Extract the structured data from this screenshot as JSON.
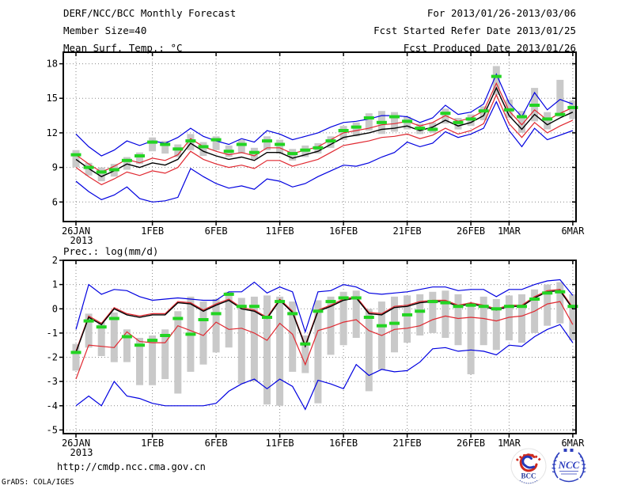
{
  "header": {
    "left": [
      "DERF/NCC/BCC Monthly Forecast",
      "Member Size=40"
    ],
    "right": [
      "For 2013/01/26-2013/03/06",
      "Fcst Started Refer Date 2013/01/25",
      "Fcst Produced Date 2013/01/26"
    ]
  },
  "footer": {
    "url": "http://cmdp.ncc.cma.gov.cn",
    "credit": "GrADS: COLA/IGES",
    "logos": [
      {
        "label": "BCC"
      },
      {
        "label": "NCC"
      }
    ]
  },
  "colors": {
    "line_blue": "#0000e0",
    "line_red": "#e02830",
    "line_black": "#000000",
    "marker_green": "#22d422",
    "bar_gray": "#c9c9c9",
    "grid": "#8a8a8a"
  },
  "chart_data": [
    {
      "type": "line",
      "name": "temp-forecast-panel",
      "title": "Mean Surf. Temp.: °C",
      "x_start": "26JAN2013",
      "x_tick_days": [
        0,
        6,
        11,
        16,
        21,
        26,
        31,
        34,
        39
      ],
      "x_tick_labels": [
        "26JAN",
        "1FEB",
        "6FEB",
        "11FEB",
        "16FEB",
        "21FEB",
        "26FEB",
        "1MAR",
        "6MAR"
      ],
      "year_label": "2013",
      "ylim": [
        4.3,
        19.0
      ],
      "yticks": [
        6,
        9,
        12,
        15,
        18
      ],
      "grid": "dotted",
      "series": [
        {
          "name": "ensemble-max",
          "color": "#0000e0",
          "width": 1.2,
          "values": [
            11.9,
            10.8,
            10.0,
            10.5,
            11.3,
            10.9,
            11.3,
            11.1,
            11.6,
            12.4,
            11.7,
            11.3,
            11.0,
            11.5,
            11.2,
            12.2,
            11.9,
            11.4,
            11.7,
            12.0,
            12.5,
            12.9,
            13.0,
            13.2,
            13.5,
            13.5,
            13.4,
            12.9,
            13.3,
            14.4,
            13.6,
            13.8,
            14.5,
            17.1,
            14.6,
            13.4,
            15.5,
            14.0,
            14.9,
            14.5
          ]
        },
        {
          "name": "ensemble-min",
          "color": "#0000e0",
          "width": 1.2,
          "values": [
            7.8,
            6.9,
            6.2,
            6.6,
            7.3,
            6.3,
            6.0,
            6.1,
            6.4,
            8.9,
            8.2,
            7.6,
            7.2,
            7.4,
            7.1,
            8.0,
            7.8,
            7.3,
            7.6,
            8.2,
            8.7,
            9.2,
            9.1,
            9.4,
            9.9,
            10.3,
            11.2,
            10.8,
            11.1,
            12.1,
            11.6,
            11.9,
            12.4,
            14.7,
            12.2,
            10.8,
            12.4,
            11.4,
            11.8,
            12.2
          ]
        },
        {
          "name": "mean-plus-std",
          "color": "#e02830",
          "width": 1.2,
          "values": [
            10.1,
            9.3,
            8.6,
            9.1,
            9.7,
            9.4,
            9.8,
            9.6,
            10.1,
            11.5,
            10.8,
            10.4,
            10.1,
            10.3,
            10.0,
            10.7,
            10.7,
            10.2,
            10.5,
            10.8,
            11.4,
            12.0,
            12.2,
            12.4,
            12.7,
            12.8,
            13.0,
            12.6,
            12.9,
            13.5,
            13.0,
            13.3,
            13.9,
            16.3,
            13.9,
            12.7,
            14.0,
            13.1,
            13.7,
            14.2
          ]
        },
        {
          "name": "mean-minus-std",
          "color": "#e02830",
          "width": 1.2,
          "values": [
            9.0,
            8.2,
            7.5,
            8.0,
            8.6,
            8.3,
            8.7,
            8.5,
            9.0,
            10.4,
            9.7,
            9.3,
            9.0,
            9.2,
            8.9,
            9.6,
            9.6,
            9.1,
            9.4,
            9.7,
            10.3,
            10.9,
            11.1,
            11.3,
            11.6,
            11.7,
            11.9,
            11.5,
            11.8,
            12.4,
            11.9,
            12.2,
            12.8,
            15.3,
            12.8,
            11.6,
            12.9,
            12.0,
            12.6,
            13.1
          ]
        },
        {
          "name": "ensemble-mean",
          "color": "#000000",
          "width": 1.4,
          "values": [
            9.7,
            8.9,
            8.2,
            8.7,
            9.3,
            9.0,
            9.4,
            9.2,
            9.7,
            11.1,
            10.4,
            10.0,
            9.7,
            9.9,
            9.6,
            10.3,
            10.3,
            9.8,
            10.1,
            10.4,
            11.0,
            11.6,
            11.8,
            12.0,
            12.3,
            12.4,
            12.6,
            12.2,
            12.5,
            13.1,
            12.6,
            12.9,
            13.5,
            15.9,
            13.5,
            12.3,
            13.6,
            12.7,
            13.3,
            13.8
          ]
        }
      ],
      "markers": {
        "name": "daily-reference-markers-green",
        "color": "#22d422",
        "values": [
          10.1,
          9.0,
          8.6,
          8.8,
          9.6,
          10.0,
          11.2,
          11.0,
          10.6,
          11.3,
          10.8,
          11.4,
          10.4,
          11.0,
          10.3,
          11.3,
          11.0,
          10.2,
          10.5,
          10.7,
          11.3,
          12.2,
          12.5,
          13.3,
          12.9,
          13.4,
          13.0,
          12.4,
          12.3,
          13.7,
          12.9,
          13.2,
          13.9,
          16.9,
          14.0,
          13.4,
          14.4,
          13.2,
          13.6,
          14.2
        ]
      },
      "bars": {
        "name": "ensemble-spread-bars",
        "color": "#c9c9c9",
        "low": [
          9.0,
          8.3,
          7.8,
          8.2,
          8.8,
          9.3,
          10.4,
          10.2,
          9.9,
          10.5,
          10.0,
          10.5,
          9.9,
          10.2,
          9.7,
          10.5,
          10.2,
          9.6,
          9.9,
          10.2,
          10.7,
          11.4,
          11.7,
          12.2,
          11.9,
          12.1,
          12.3,
          11.9,
          12.0,
          12.8,
          12.3,
          12.6,
          13.1,
          15.3,
          13.3,
          12.0,
          13.0,
          12.3,
          13.4,
          13.2
        ],
        "high": [
          10.5,
          9.4,
          9.0,
          9.3,
          9.9,
          10.3,
          11.6,
          11.3,
          11.0,
          11.9,
          11.2,
          11.7,
          10.9,
          11.4,
          10.7,
          11.7,
          11.4,
          10.6,
          10.9,
          11.1,
          11.7,
          12.6,
          12.9,
          13.7,
          13.9,
          13.8,
          13.4,
          12.8,
          12.9,
          14.1,
          13.3,
          13.6,
          14.3,
          17.8,
          14.9,
          13.9,
          15.9,
          13.8,
          16.6,
          14.8
        ]
      }
    },
    {
      "type": "line",
      "name": "precip-forecast-panel",
      "title": "Prec.: log(mm/d)",
      "x_start": "26JAN2013",
      "x_tick_days": [
        0,
        6,
        11,
        16,
        21,
        26,
        31,
        34,
        39
      ],
      "x_tick_labels": [
        "26JAN",
        "1FEB",
        "6FEB",
        "11FEB",
        "16FEB",
        "21FEB",
        "26FEB",
        "1MAR",
        "6MAR"
      ],
      "year_label": "2013",
      "ylim": [
        -5.15,
        2.0
      ],
      "yticks": [
        2,
        1,
        0,
        -1,
        -2,
        -3,
        -4,
        -5
      ],
      "grid": "dotted",
      "series": [
        {
          "name": "ensemble-max",
          "color": "#0000e0",
          "width": 1.2,
          "values": [
            -0.85,
            1.0,
            0.6,
            0.8,
            0.75,
            0.5,
            0.35,
            0.4,
            0.45,
            0.4,
            0.35,
            0.35,
            0.7,
            0.7,
            1.1,
            0.65,
            0.9,
            0.7,
            -0.95,
            0.7,
            0.75,
            1.0,
            0.9,
            0.65,
            0.6,
            0.65,
            0.7,
            0.8,
            0.9,
            0.9,
            0.75,
            0.8,
            0.8,
            0.5,
            0.8,
            0.8,
            1.0,
            1.15,
            1.2,
            0.55
          ]
        },
        {
          "name": "ensemble-min",
          "color": "#0000e0",
          "width": 1.2,
          "values": [
            -4.0,
            -3.6,
            -4.0,
            -3.0,
            -3.6,
            -3.7,
            -3.9,
            -4.0,
            -4.0,
            -4.0,
            -4.0,
            -3.9,
            -3.4,
            -3.1,
            -2.9,
            -3.3,
            -2.9,
            -3.2,
            -4.15,
            -2.95,
            -3.1,
            -3.3,
            -2.3,
            -2.75,
            -2.5,
            -2.6,
            -2.55,
            -2.2,
            -1.65,
            -1.6,
            -1.75,
            -1.7,
            -1.75,
            -1.9,
            -1.5,
            -1.55,
            -1.15,
            -0.85,
            -0.65,
            -1.4
          ]
        },
        {
          "name": "mean-plus-std",
          "color": "#e02830",
          "width": 1.2,
          "values": [
            -1.75,
            -0.3,
            -0.6,
            0.05,
            -0.2,
            -0.3,
            -0.2,
            -0.2,
            0.3,
            0.25,
            -0.05,
            0.2,
            0.4,
            0.05,
            -0.05,
            -0.35,
            0.4,
            -0.1,
            -1.5,
            -0.05,
            0.15,
            0.4,
            0.5,
            -0.15,
            -0.2,
            0.1,
            0.15,
            0.3,
            0.35,
            0.35,
            0.15,
            0.25,
            0.15,
            0.0,
            0.15,
            0.15,
            0.5,
            0.75,
            0.8,
            0.05
          ]
        },
        {
          "name": "mean-minus-std",
          "color": "#e02830",
          "width": 1.2,
          "values": [
            -2.9,
            -1.5,
            -1.55,
            -1.6,
            -0.95,
            -1.35,
            -1.4,
            -1.4,
            -0.7,
            -0.9,
            -1.1,
            -0.55,
            -0.85,
            -0.8,
            -1.0,
            -1.3,
            -0.6,
            -1.05,
            -2.3,
            -0.9,
            -0.75,
            -0.55,
            -0.45,
            -0.9,
            -1.1,
            -0.85,
            -0.8,
            -0.7,
            -0.45,
            -0.3,
            -0.4,
            -0.35,
            -0.4,
            -0.5,
            -0.35,
            -0.3,
            -0.1,
            0.2,
            0.3,
            -0.65
          ]
        },
        {
          "name": "ensemble-mean",
          "color": "#000000",
          "width": 1.4,
          "values": [
            -1.8,
            -0.35,
            -0.65,
            0.0,
            -0.25,
            -0.35,
            -0.25,
            -0.25,
            0.25,
            0.2,
            -0.1,
            0.15,
            0.35,
            0.0,
            -0.1,
            -0.4,
            0.35,
            -0.15,
            -1.55,
            -0.1,
            0.1,
            0.35,
            0.45,
            -0.2,
            -0.25,
            0.05,
            0.1,
            0.25,
            0.3,
            0.3,
            0.1,
            0.2,
            0.1,
            -0.05,
            0.1,
            0.1,
            0.45,
            0.7,
            0.75,
            0.0
          ]
        }
      ],
      "markers": {
        "name": "daily-reference-markers-green",
        "color": "#22d422",
        "values": [
          -1.8,
          -0.5,
          -0.75,
          -0.4,
          -1.15,
          -1.5,
          -1.3,
          -1.1,
          -0.4,
          -1.05,
          -0.45,
          -0.2,
          0.6,
          0.1,
          0.1,
          -0.35,
          0.3,
          -0.2,
          -1.45,
          -0.1,
          0.3,
          0.45,
          0.45,
          -0.35,
          -0.7,
          -0.6,
          -0.25,
          -0.1,
          0.3,
          0.25,
          0.1,
          0.15,
          0.1,
          0.0,
          0.1,
          0.1,
          0.4,
          0.65,
          0.7,
          0.1
        ]
      },
      "bars": {
        "name": "ensemble-spread-bars",
        "color": "#c9c9c9",
        "low": [
          -2.55,
          -1.6,
          -1.95,
          -2.2,
          -2.2,
          -3.15,
          -3.15,
          -2.9,
          -3.5,
          -2.6,
          -2.3,
          -1.8,
          -1.6,
          -3.1,
          -3.0,
          -3.95,
          -4.0,
          -2.6,
          -2.65,
          -3.9,
          -1.9,
          -1.5,
          -1.2,
          -3.4,
          -2.5,
          -1.8,
          -1.4,
          -1.1,
          -1.0,
          -1.2,
          -1.5,
          -2.7,
          -1.5,
          -1.7,
          -1.3,
          -1.4,
          -1.0,
          -0.7,
          -0.6,
          -1.3
        ],
        "high": [
          -1.45,
          -0.2,
          -0.55,
          -0.15,
          -0.85,
          -1.2,
          -1.1,
          -0.85,
          -0.1,
          0.5,
          0.3,
          0.4,
          0.7,
          0.45,
          0.5,
          0.55,
          0.5,
          0.3,
          -1.1,
          0.35,
          0.5,
          0.7,
          0.75,
          0.0,
          0.3,
          0.5,
          0.55,
          0.6,
          0.7,
          0.75,
          0.6,
          0.25,
          0.5,
          0.4,
          0.55,
          0.6,
          0.8,
          1.0,
          1.1,
          0.6
        ]
      }
    }
  ]
}
